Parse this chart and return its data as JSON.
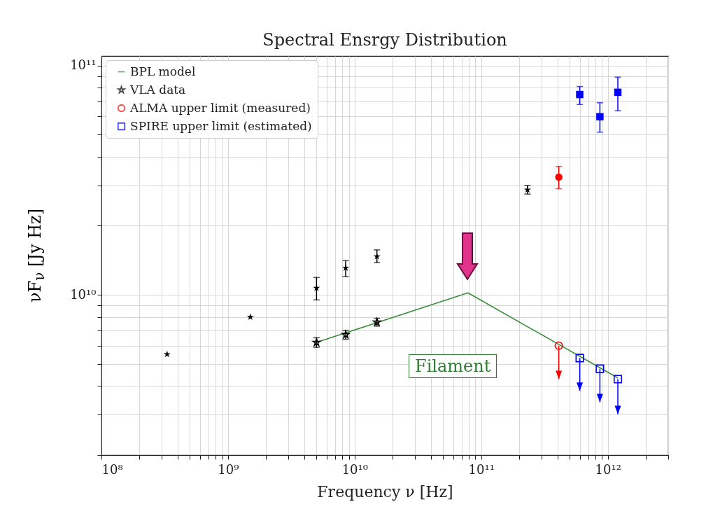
{
  "chart_data": {
    "type": "scatter",
    "title": "Spectral Ensrgy Distribution",
    "xlabel": "Frequency ν [Hz]",
    "ylabel": "νF$_{ν}$ [Jy Hz]",
    "log": "xy",
    "grid": true,
    "legend": "top left",
    "annotations": [
      "Filament"
    ],
    "xlim": [
      100000000.0,
      3000000000000.0
    ],
    "ylim": [
      2000000000.0,
      110000000000.0
    ],
    "xticks": [
      {
        "value": 100000000.0,
        "label": "10⁸"
      },
      {
        "value": 200000000.0,
        "label": null
      },
      {
        "value": 300000000.0,
        "label": null
      },
      {
        "value": 400000000.0,
        "label": null
      },
      {
        "value": 500000000.0,
        "label": null
      },
      {
        "value": 600000000.0,
        "label": null
      },
      {
        "value": 700000000.0,
        "label": null
      },
      {
        "value": 800000000.0,
        "label": null
      },
      {
        "value": 900000000.0,
        "label": null
      },
      {
        "value": 1000000000.0,
        "label": "10⁹"
      },
      {
        "value": 2000000000.0,
        "label": null
      },
      {
        "value": 3000000000.0,
        "label": null
      },
      {
        "value": 4000000000.0,
        "label": null
      },
      {
        "value": 5000000000.0,
        "label": null
      },
      {
        "value": 6000000000.0,
        "label": null
      },
      {
        "value": 7000000000.0,
        "label": null
      },
      {
        "value": 8000000000.0,
        "label": null
      },
      {
        "value": 9000000000.0,
        "label": null
      },
      {
        "value": 10000000000.0,
        "label": "10¹⁰"
      },
      {
        "value": 20000000000.0,
        "label": null
      },
      {
        "value": 30000000000.0,
        "label": null
      },
      {
        "value": 40000000000.0,
        "label": null
      },
      {
        "value": 50000000000.0,
        "label": null
      },
      {
        "value": 60000000000.0,
        "label": null
      },
      {
        "value": 70000000000.0,
        "label": null
      },
      {
        "value": 80000000000.0,
        "label": null
      },
      {
        "value": 90000000000.0,
        "label": null
      },
      {
        "value": 100000000000.0,
        "label": "10¹¹"
      },
      {
        "value": 200000000000.0,
        "label": null
      },
      {
        "value": 300000000000.0,
        "label": null
      },
      {
        "value": 400000000000.0,
        "label": null
      },
      {
        "value": 500000000000.0,
        "label": null
      },
      {
        "value": 600000000000.0,
        "label": null
      },
      {
        "value": 700000000000.0,
        "label": null
      },
      {
        "value": 800000000000.0,
        "label": null
      },
      {
        "value": 900000000000.0,
        "label": null
      },
      {
        "value": 1000000000000.0,
        "label": "10¹²"
      },
      {
        "value": 2000000000000.0,
        "label": null
      },
      {
        "value": 3000000000000.0,
        "label": null
      }
    ],
    "yticks": [
      {
        "value": 2000000000.0,
        "label": null
      },
      {
        "value": 3000000000.0,
        "label": null
      },
      {
        "value": 4000000000.0,
        "label": null
      },
      {
        "value": 5000000000.0,
        "label": null
      },
      {
        "value": 6000000000.0,
        "label": null
      },
      {
        "value": 7000000000.0,
        "label": null
      },
      {
        "value": 8000000000.0,
        "label": null
      },
      {
        "value": 9000000000.0,
        "label": null
      },
      {
        "value": 10000000000.0,
        "label": "10¹⁰"
      },
      {
        "value": 20000000000.0,
        "label": null
      },
      {
        "value": 30000000000.0,
        "label": null
      },
      {
        "value": 40000000000.0,
        "label": null
      },
      {
        "value": 50000000000.0,
        "label": null
      },
      {
        "value": 60000000000.0,
        "label": null
      },
      {
        "value": 70000000000.0,
        "label": null
      },
      {
        "value": 80000000000.0,
        "label": null
      },
      {
        "value": 90000000000.0,
        "label": null
      },
      {
        "value": 100000000000.0,
        "label": "10¹¹"
      }
    ],
    "series": [
      {
        "name": "BPL model",
        "type": "line",
        "marker": "none",
        "color": "#3c8c3c",
        "x": [
          5000000000.0,
          78500000000.0,
          1200000000000.0
        ],
        "values": [
          6200000000.0,
          10200000000.0,
          4340000000.0
        ]
      },
      {
        "name": "VLA data",
        "marker": "star",
        "color": "#000000",
        "x": [
          5000000000.0,
          8500000000.0,
          15000000000.0
        ],
        "values": [
          6200000000.0,
          6700000000.0,
          7600000000.0
        ],
        "errors": [
          [
            5900000000.0,
            6500000000.0
          ],
          [
            6400000000.0,
            7000000000.0
          ],
          [
            7300000000.0,
            7900000000.0
          ]
        ]
      },
      {
        "name": "ALMA upper limit (measured)",
        "marker": "circle",
        "color": "#ff0000",
        "x": [
          410000000000.0
        ],
        "values": [
          6000000000.0
        ],
        "errors": [
          [
            4290000000.0,
            6000000000.0
          ]
        ]
      },
      {
        "name": "SPIRE upper limit (estimated)",
        "marker": "square",
        "color": "#0000ff",
        "x": [
          600000000000.0,
          866000000000.0,
          1200000000000.0
        ],
        "values": [
          5300000000.0,
          4760000000.0,
          4290000000.0
        ],
        "errors": [
          [
            3810000000.0,
            5300000000.0
          ],
          [
            3400000000.0,
            4760000000.0
          ],
          [
            3020000000.0,
            4290000000.0
          ]
        ]
      },
      {
        "marker": "star",
        "color": "#000000",
        "x": [
          330000000.0,
          1500000000.0,
          5000000000.0,
          8500000000.0,
          15000000000.0,
          232000000000.0
        ],
        "values": [
          5500000000.0,
          8000000000.0,
          10700000000.0,
          13100000000.0,
          14700000000.0,
          28700000000.0
        ],
        "errors": [
          null,
          null,
          [
            9500000000.0,
            11900000000.0
          ],
          [
            12000000000.0,
            14100000000.0
          ],
          [
            13800000000.0,
            15700000000.0
          ],
          [
            27500000000.0,
            30000000000.0
          ]
        ]
      },
      {
        "marker": "circle",
        "color": "#ff0000",
        "x": [
          410000000000.0
        ],
        "values": [
          32600000000.0
        ],
        "errors": [
          [
            29000000000.0,
            36300000000.0
          ]
        ]
      },
      {
        "marker": "square",
        "color": "#0000ff",
        "x": [
          600000000000.0,
          866000000000.0,
          1200000000000.0
        ],
        "values": [
          74700000000.0,
          59800000000.0,
          76400000000.0
        ],
        "errors": [
          [
            67600000000.0,
            81000000000.0
          ],
          [
            51200000000.0,
            68800000000.0
          ],
          [
            63500000000.0,
            89000000000.0
          ]
        ]
      }
    ]
  }
}
